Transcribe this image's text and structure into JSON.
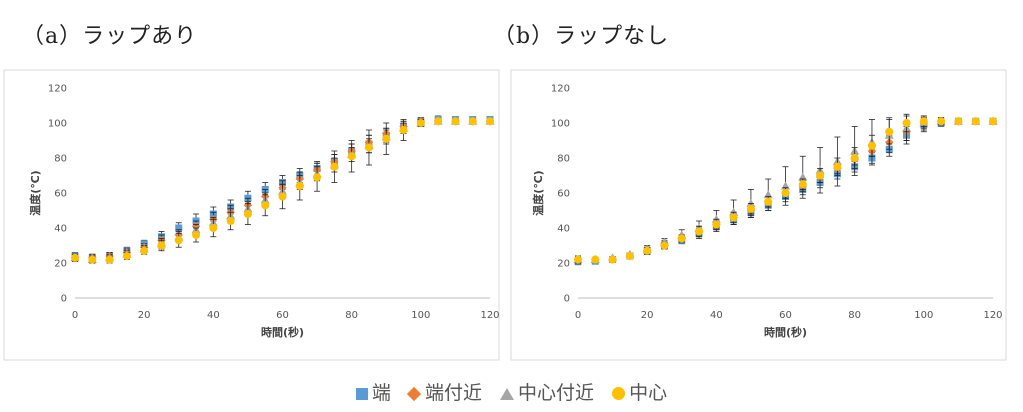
{
  "colors": {
    "端": "#5B9BD5",
    "端付近": "#ED7D31",
    "中心付近": "#A5A5A5",
    "中心": "#FFC000",
    "errorbar": "#222222",
    "plot_border": "#d9d9d9"
  },
  "chart_data": [
    {
      "type": "scatter",
      "title": "（a）ラップあり",
      "xlabel": "時間(秒)",
      "ylabel": "温度(℃)",
      "xlim": [
        0,
        120
      ],
      "ylim": [
        0,
        120
      ],
      "xticks": [
        0,
        20,
        40,
        60,
        80,
        100,
        120
      ],
      "yticks": [
        0,
        20,
        40,
        60,
        80,
        100,
        120
      ],
      "grid": false,
      "legend_position": "bottom",
      "x": [
        0,
        5,
        10,
        15,
        20,
        25,
        30,
        35,
        40,
        45,
        50,
        55,
        60,
        65,
        70,
        75,
        80,
        85,
        90,
        95,
        100,
        105,
        110,
        115,
        120
      ],
      "series": [
        {
          "name": "端",
          "marker": "square",
          "values": [
            24,
            23,
            24,
            27,
            31,
            35,
            40,
            44,
            48,
            52,
            57,
            62,
            66,
            70,
            74,
            78,
            84,
            88,
            93,
            98,
            101,
            102,
            102,
            102,
            102
          ],
          "errors": [
            2,
            2,
            2,
            2,
            2,
            3,
            3,
            4,
            4,
            4,
            4,
            4,
            4,
            4,
            4,
            4,
            4,
            5,
            4,
            3,
            2,
            2,
            1,
            1,
            1
          ]
        },
        {
          "name": "端付近",
          "marker": "diamond",
          "values": [
            23,
            23,
            24,
            26,
            29,
            33,
            36,
            41,
            45,
            49,
            53,
            58,
            63,
            68,
            73,
            78,
            84,
            89,
            94,
            98,
            101,
            101,
            101,
            101,
            101
          ],
          "errors": [
            2,
            2,
            2,
            2,
            2,
            3,
            3,
            3,
            4,
            4,
            4,
            4,
            4,
            4,
            4,
            4,
            4,
            4,
            3,
            3,
            2,
            1,
            1,
            1,
            1
          ]
        },
        {
          "name": "中心付近",
          "marker": "triangle",
          "values": [
            23,
            22,
            23,
            25,
            28,
            31,
            35,
            39,
            43,
            47,
            51,
            56,
            61,
            66,
            71,
            76,
            82,
            87,
            92,
            97,
            100,
            101,
            101,
            101,
            101
          ],
          "errors": [
            2,
            2,
            2,
            2,
            2,
            3,
            3,
            3,
            3,
            4,
            4,
            4,
            4,
            4,
            4,
            4,
            4,
            4,
            4,
            3,
            2,
            1,
            1,
            1,
            1
          ]
        },
        {
          "name": "中心",
          "marker": "circle",
          "values": [
            23,
            22,
            22,
            24,
            27,
            30,
            33,
            36,
            40,
            44,
            48,
            53,
            58,
            64,
            69,
            75,
            81,
            86,
            91,
            96,
            100,
            101,
            101,
            101,
            101
          ],
          "errors": [
            2,
            2,
            2,
            2,
            2,
            3,
            4,
            4,
            5,
            5,
            6,
            6,
            7,
            8,
            8,
            9,
            9,
            10,
            9,
            6,
            2,
            1,
            1,
            1,
            1
          ]
        }
      ]
    },
    {
      "type": "scatter",
      "title": "（b）ラップなし",
      "xlabel": "時間(秒)",
      "ylabel": "温度(℃)",
      "xlim": [
        0,
        120
      ],
      "ylim": [
        0,
        120
      ],
      "xticks": [
        0,
        20,
        40,
        60,
        80,
        100,
        120
      ],
      "yticks": [
        0,
        20,
        40,
        60,
        80,
        100,
        120
      ],
      "grid": false,
      "legend_position": "bottom",
      "x": [
        0,
        5,
        10,
        15,
        20,
        25,
        30,
        35,
        40,
        45,
        50,
        55,
        60,
        65,
        70,
        75,
        80,
        85,
        90,
        95,
        100,
        105,
        110,
        115,
        120
      ],
      "series": [
        {
          "name": "端",
          "marker": "square",
          "values": [
            21,
            21,
            22,
            24,
            27,
            30,
            33,
            37,
            41,
            45,
            49,
            53,
            58,
            62,
            66,
            71,
            75,
            80,
            85,
            93,
            99,
            100,
            101,
            101,
            101
          ],
          "errors": [
            2,
            1,
            1,
            1,
            2,
            2,
            2,
            3,
            3,
            3,
            3,
            3,
            3,
            3,
            3,
            3,
            3,
            3,
            4,
            5,
            4,
            2,
            1,
            1,
            1
          ]
        },
        {
          "name": "端付近",
          "marker": "diamond",
          "values": [
            22,
            22,
            22,
            24,
            27,
            31,
            34,
            38,
            42,
            46,
            50,
            55,
            60,
            64,
            69,
            74,
            79,
            84,
            89,
            95,
            100,
            101,
            101,
            101,
            101
          ],
          "errors": [
            2,
            1,
            1,
            1,
            2,
            2,
            2,
            3,
            3,
            3,
            3,
            3,
            3,
            3,
            3,
            3,
            3,
            3,
            4,
            5,
            3,
            2,
            1,
            1,
            1
          ]
        },
        {
          "name": "中心付近",
          "marker": "triangle",
          "values": [
            22,
            22,
            23,
            25,
            28,
            32,
            36,
            40,
            45,
            49,
            54,
            59,
            64,
            69,
            73,
            78,
            84,
            89,
            93,
            97,
            100,
            101,
            101,
            101,
            101
          ],
          "errors": [
            2,
            1,
            1,
            1,
            2,
            2,
            3,
            4,
            5,
            7,
            8,
            9,
            11,
            12,
            13,
            14,
            14,
            13,
            10,
            7,
            4,
            2,
            1,
            1,
            1
          ]
        },
        {
          "name": "中心",
          "marker": "circle",
          "values": [
            22,
            22,
            22,
            24,
            27,
            30,
            34,
            38,
            42,
            46,
            51,
            55,
            60,
            65,
            70,
            75,
            80,
            87,
            95,
            100,
            101,
            101,
            101,
            101,
            101
          ],
          "errors": [
            2,
            1,
            1,
            1,
            2,
            2,
            2,
            3,
            3,
            3,
            3,
            3,
            3,
            3,
            4,
            5,
            6,
            6,
            7,
            5,
            3,
            2,
            1,
            1,
            1
          ]
        }
      ]
    }
  ],
  "legend": [
    {
      "label": "端",
      "marker": "square"
    },
    {
      "label": "端付近",
      "marker": "diamond"
    },
    {
      "label": "中心付近",
      "marker": "triangle"
    },
    {
      "label": "中心",
      "marker": "circle"
    }
  ]
}
